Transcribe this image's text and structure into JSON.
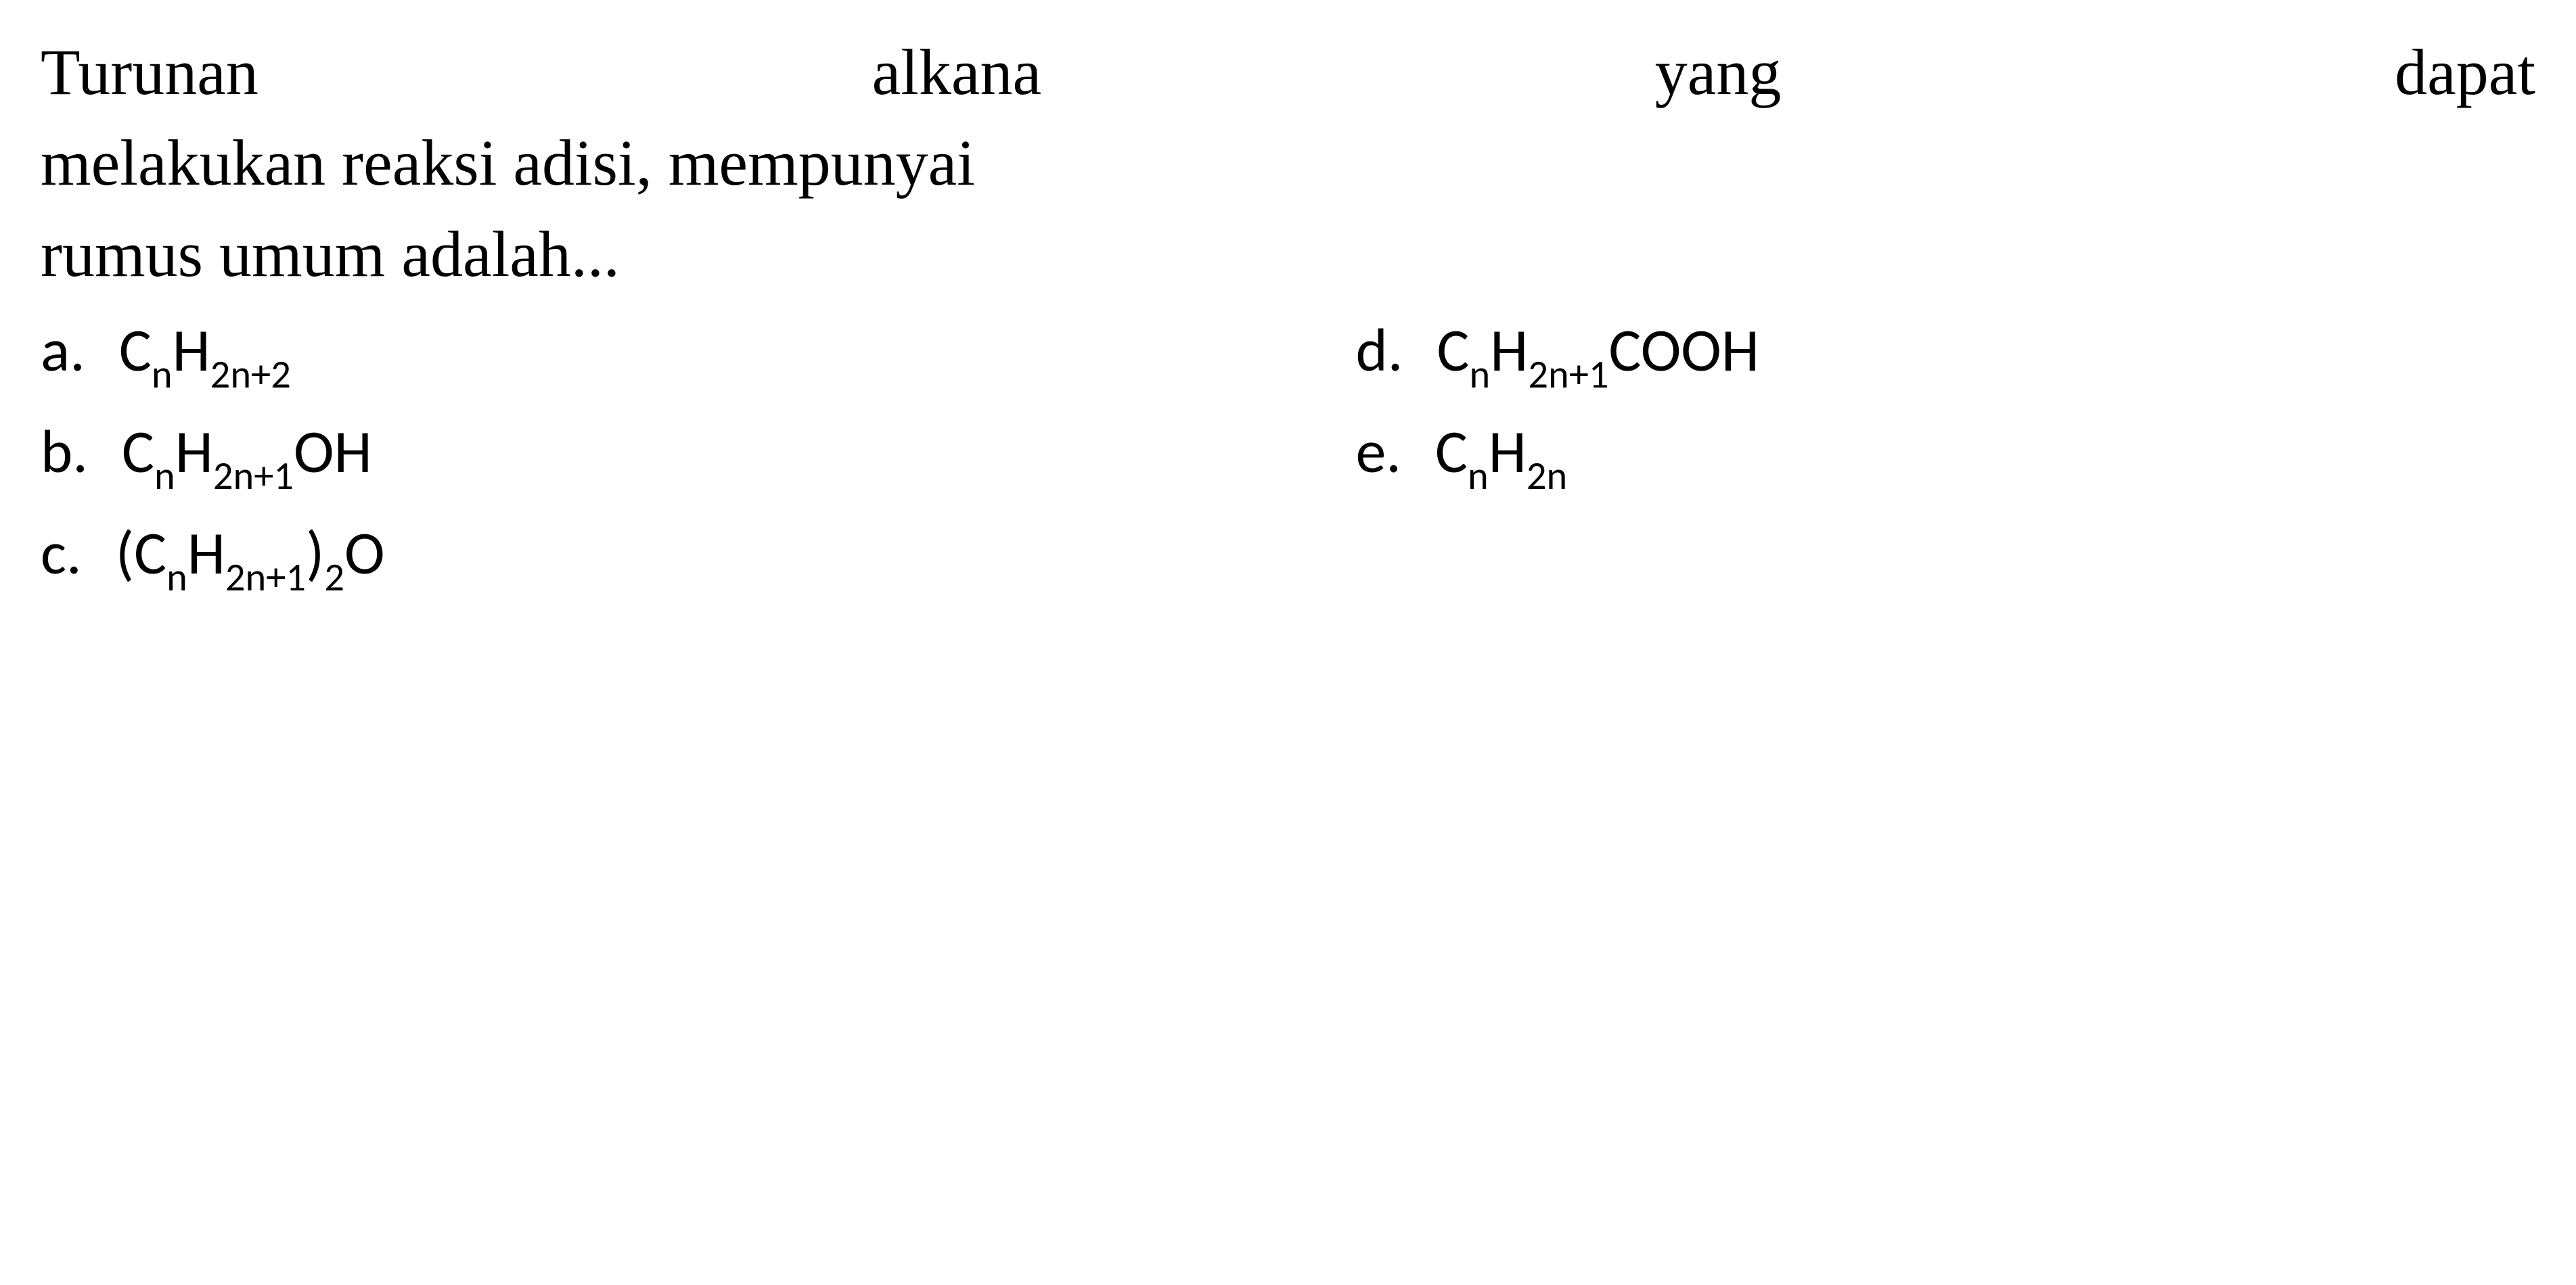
{
  "question": {
    "line1": "Turunan",
    "line1b": "alkana",
    "line1c": "yang",
    "line1d": "dapat",
    "line2": "melakukan reaksi adisi, mempunyai",
    "line3": "rumus umum adalah...",
    "full_line1": "Turunan alkana yang dapat"
  },
  "options": {
    "a": {
      "letter": "a.",
      "base": "C",
      "sub1": "n",
      "mid": "H",
      "sub2": "2n+2",
      "suffix": ""
    },
    "b": {
      "letter": "b.",
      "base": "C",
      "sub1": "n",
      "mid": "H",
      "sub2": "2n+1",
      "suffix": "OH"
    },
    "c": {
      "letter": "c.",
      "prefix": "(",
      "base": "C",
      "sub1": "n",
      "mid": "H",
      "sub2": "2n+1",
      "close": ")",
      "sub3": "2",
      "suffix": "O"
    },
    "d": {
      "letter": "d.",
      "base": "C",
      "sub1": "n",
      "mid": "H",
      "sub2": "2n+1",
      "suffix": "COOH"
    },
    "e": {
      "letter": "e.",
      "base": "C",
      "sub1": "n",
      "mid": "H",
      "sub2": "2n",
      "suffix": ""
    }
  },
  "styling": {
    "background_color": "#ffffff",
    "text_color": "#000000",
    "question_font": "Times New Roman",
    "question_fontsize": 96,
    "option_font": "Calibri",
    "option_fontsize": 90,
    "subscript_scale": 0.65
  }
}
